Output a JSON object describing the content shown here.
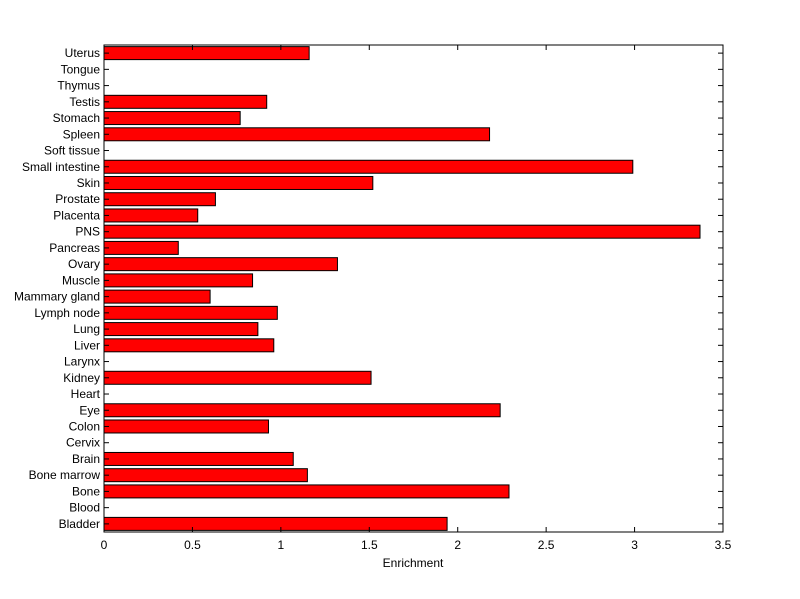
{
  "chart_data": {
    "type": "bar",
    "orientation": "horizontal",
    "categories": [
      "Bladder",
      "Blood",
      "Bone",
      "Bone marrow",
      "Brain",
      "Cervix",
      "Colon",
      "Eye",
      "Heart",
      "Kidney",
      "Larynx",
      "Liver",
      "Lung",
      "Lymph node",
      "Mammary gland",
      "Muscle",
      "Ovary",
      "Pancreas",
      "PNS",
      "Placenta",
      "Prostate",
      "Skin",
      "Small intestine",
      "Soft tissue",
      "Spleen",
      "Stomach",
      "Testis",
      "Thymus",
      "Tongue",
      "Uterus"
    ],
    "values": [
      1.94,
      0,
      2.29,
      1.15,
      1.07,
      0,
      0.93,
      2.24,
      0,
      1.51,
      0,
      0.96,
      0.87,
      0.98,
      0.6,
      0.84,
      1.32,
      0.42,
      3.37,
      0.53,
      0.63,
      1.52,
      2.99,
      0,
      2.18,
      0.77,
      0.92,
      0,
      0,
      1.16
    ],
    "title": "",
    "xlabel": "Enrichment",
    "ylabel": "",
    "xlim": [
      0,
      3.5
    ],
    "xticks": [
      "0",
      "0.5",
      "1",
      "1.5",
      "2",
      "2.5",
      "3",
      "3.5"
    ],
    "grid": false,
    "bar_color": "#ff0000",
    "edge_color": "#000000"
  }
}
